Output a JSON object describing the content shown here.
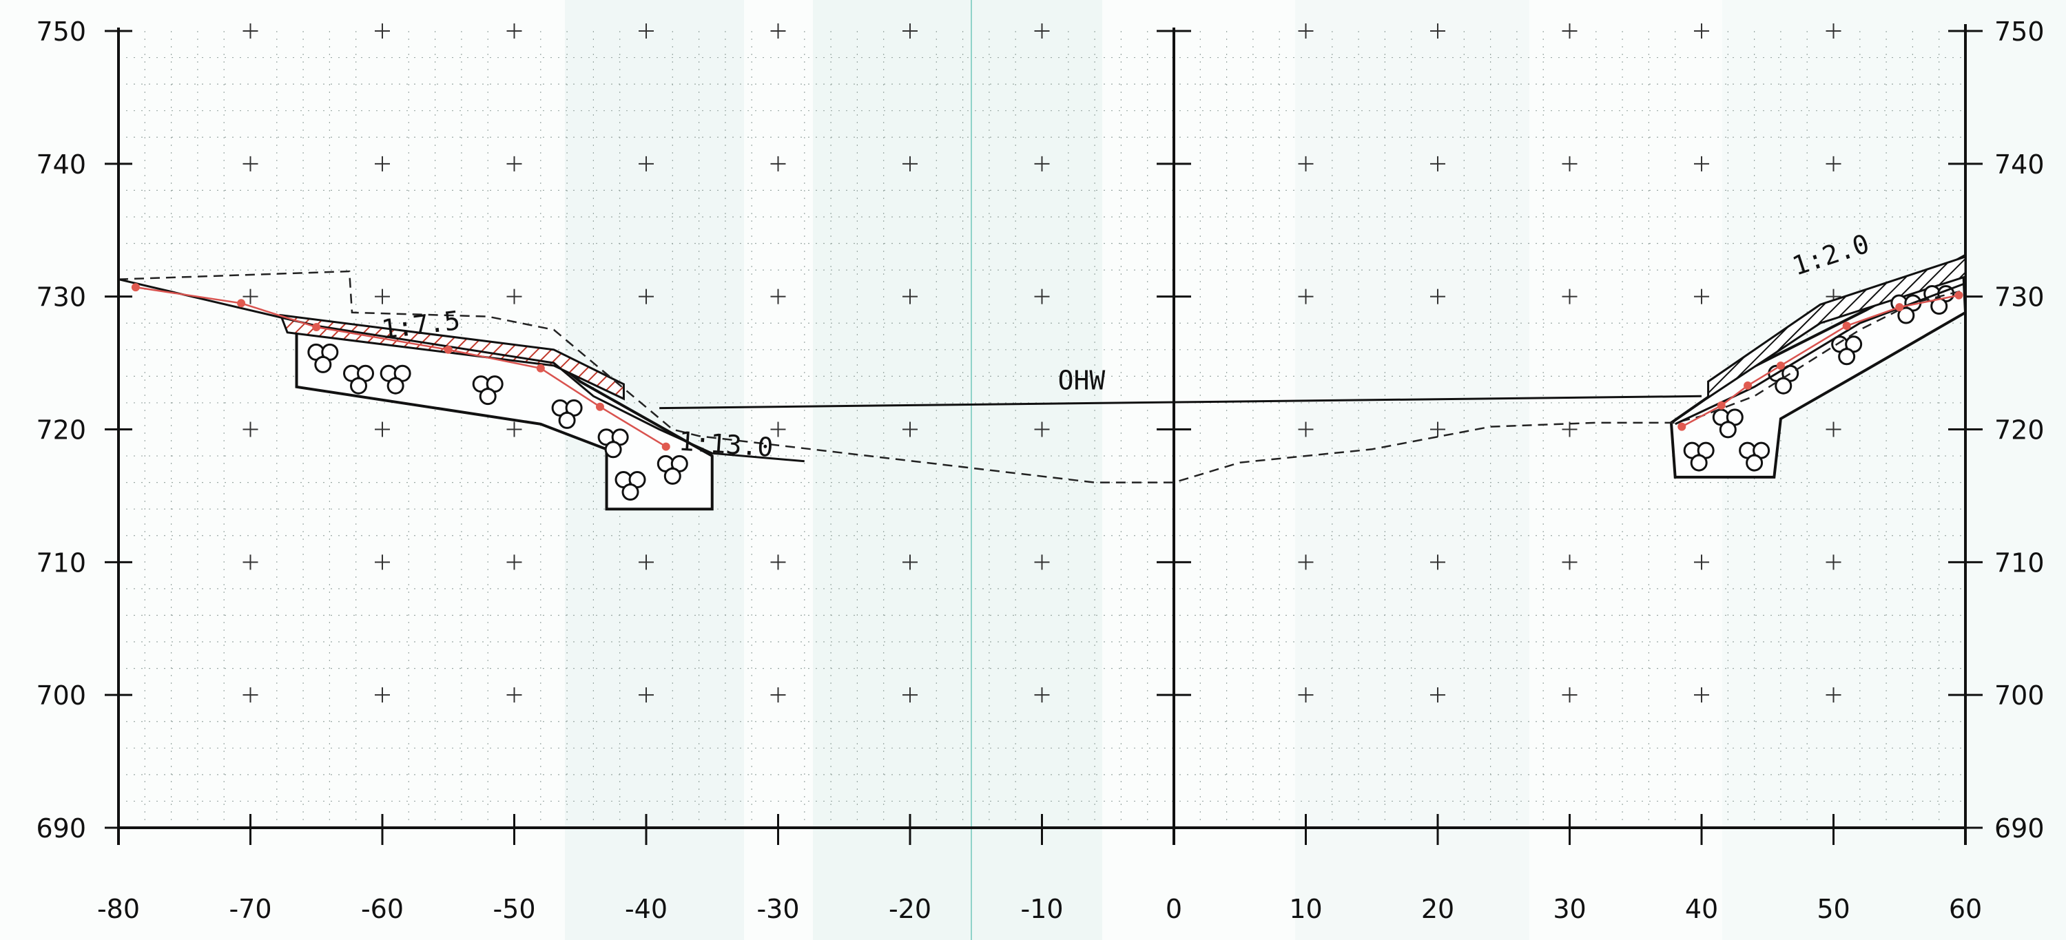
{
  "chart_data": {
    "type": "line",
    "title": "",
    "xlabel": "",
    "ylabel": "",
    "xlim": [
      -80,
      60
    ],
    "ylim": [
      690,
      750
    ],
    "x_ticks": [
      -80,
      -70,
      -60,
      -50,
      -40,
      -30,
      -20,
      -10,
      0,
      10,
      20,
      30,
      40,
      50,
      60
    ],
    "x_tick_labels": [
      "-80",
      "-70",
      "-60",
      "-50",
      "-40",
      "-30",
      "-20",
      "-10",
      "0",
      "10",
      "20",
      "30",
      "40",
      "50",
      "60"
    ],
    "y_ticks": [
      690,
      700,
      710,
      720,
      730,
      740,
      750
    ],
    "y_tick_labels": [
      "690",
      "700",
      "710",
      "720",
      "730",
      "740",
      "750"
    ],
    "grid": "dotted with cross markers",
    "annotations": [
      {
        "text": "1:7.5",
        "x": -57,
        "y": 727.2
      },
      {
        "text": "1:13.0",
        "x": -34,
        "y": 718.2
      },
      {
        "text": "OHW",
        "x": -7,
        "y": 723.0
      },
      {
        "text": "1:2.0",
        "x": 50,
        "y": 732.5
      }
    ],
    "series": [
      {
        "style": "dashed",
        "x": [
          -80,
          -62.5,
          -62.3,
          -52,
          -47,
          -38,
          -36,
          -6,
          0,
          5,
          15,
          24,
          32,
          38,
          40,
          44,
          48,
          52,
          56,
          60
        ],
        "y": [
          731.3,
          731.9,
          728.8,
          728.5,
          727.5,
          720,
          719.5,
          716,
          716,
          717.5,
          718.5,
          720.2,
          720.5,
          720.5,
          721,
          722.5,
          725,
          727.5,
          729.5,
          730.5
        ]
      },
      {
        "style": "solid",
        "x": [
          -80,
          -65,
          -47,
          -44,
          -39,
          -35,
          -28
        ],
        "y": [
          731.3,
          727.8,
          725,
          722.5,
          720,
          718.2,
          717.6
        ]
      },
      {
        "style": "solid",
        "x": [
          -39,
          40
        ],
        "y": [
          721.6,
          722.5
        ]
      },
      {
        "style": "solid",
        "x": [
          38,
          44,
          52,
          60
        ],
        "y": [
          720.4,
          723.2,
          728,
          731
        ]
      },
      {
        "style": "red",
        "x": [
          -78.7,
          -70.7,
          -65,
          -55,
          -48,
          -43.5,
          -38.5
        ],
        "y": [
          730.7,
          729.5,
          727.7,
          726,
          724.6,
          721.7,
          718.7
        ]
      },
      {
        "style": "red",
        "x": [
          38.5,
          41.5,
          43.5,
          46,
          51,
          55,
          59.5
        ],
        "y": [
          720.2,
          721.8,
          723.3,
          724.8,
          727.8,
          729.2,
          730.1
        ]
      }
    ]
  }
}
